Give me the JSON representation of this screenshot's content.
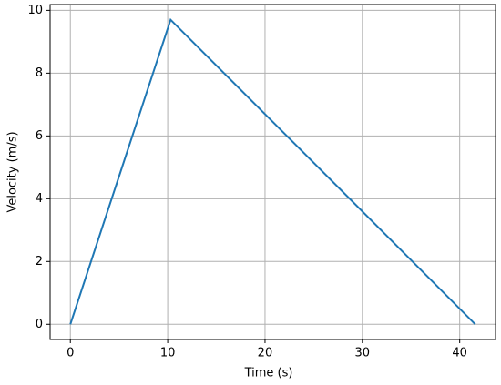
{
  "chart_data": {
    "type": "line",
    "x_label": "Time (s)",
    "y_label": "Velocity (m/s)",
    "x": [
      0,
      10.3,
      41.6
    ],
    "series": [
      {
        "color": "#1f77b4",
        "values": [
          0,
          9.7,
          0
        ]
      }
    ],
    "xlim": [
      -2.08,
      43.68
    ],
    "ylim": [
      -0.485,
      10.185
    ],
    "xticks": [
      0,
      10,
      20,
      30,
      40
    ],
    "yticks": [
      0,
      2,
      4,
      6,
      8,
      10
    ],
    "grid": true
  }
}
